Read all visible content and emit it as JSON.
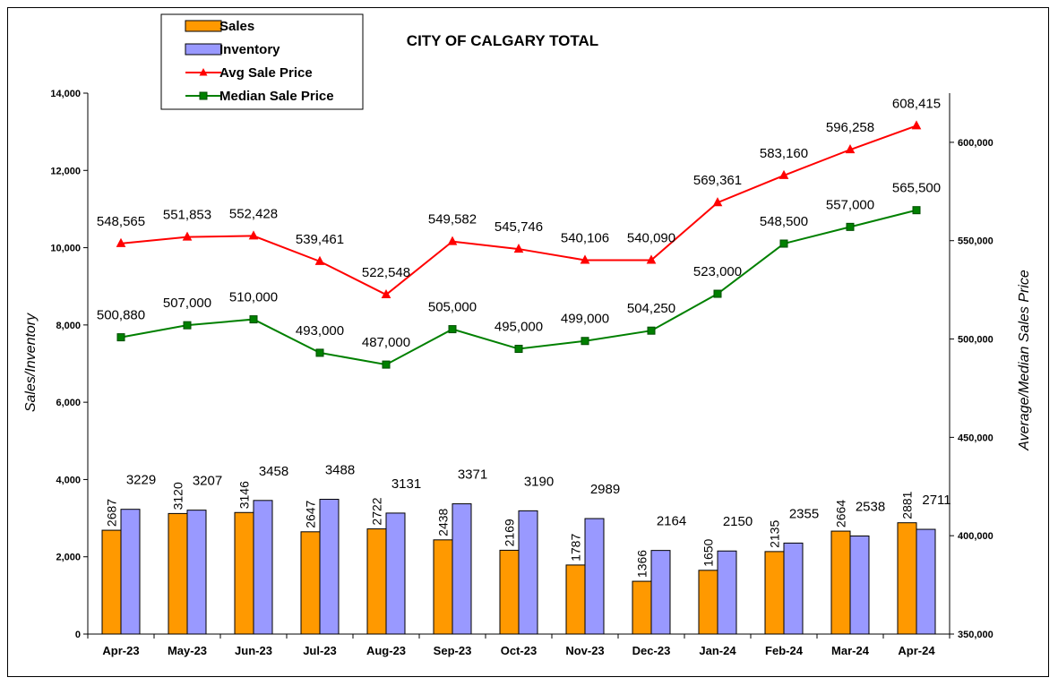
{
  "chart_data": {
    "type": "bar",
    "title": "CITY OF CALGARY TOTAL",
    "categories": [
      "Apr-23",
      "May-23",
      "Jun-23",
      "Jul-23",
      "Aug-23",
      "Sep-23",
      "Oct-23",
      "Nov-23",
      "Dec-23",
      "Jan-24",
      "Feb-24",
      "Mar-24",
      "Apr-24"
    ],
    "ylabel_left": "Sales/Inventory",
    "ylabel_right": "Average/Median Sales Price",
    "ylim_left": [
      0,
      14000
    ],
    "yticks_left": [
      "0",
      "2,000",
      "4,000",
      "6,000",
      "8,000",
      "10,000",
      "12,000",
      "14,000"
    ],
    "ylim_right": [
      350000,
      625000
    ],
    "yticks_right": [
      "350,000",
      "400,000",
      "450,000",
      "500,000",
      "550,000",
      "600,000"
    ],
    "legend_position": "top-left",
    "series": [
      {
        "name": "Sales",
        "type": "bar",
        "axis": "left",
        "color": "#FF9900",
        "values": [
          2687,
          3120,
          3146,
          2647,
          2722,
          2438,
          2169,
          1787,
          1366,
          1650,
          2135,
          2664,
          2881
        ],
        "labels": [
          "2687",
          "3120",
          "3146",
          "2647",
          "2722",
          "2438",
          "2169",
          "1787",
          "1366",
          "1650",
          "2135",
          "2664",
          "2881"
        ]
      },
      {
        "name": "Inventory",
        "type": "bar",
        "axis": "left",
        "color": "#9999FF",
        "values": [
          3229,
          3207,
          3458,
          3488,
          3131,
          3371,
          3190,
          2989,
          2164,
          2150,
          2355,
          2538,
          2711
        ],
        "labels": [
          "3229",
          "3207",
          "3458",
          "3488",
          "3131",
          "3371",
          "3190",
          "2989",
          "2164",
          "2150",
          "2355",
          "2538",
          "2711"
        ]
      },
      {
        "name": "Avg Sale Price",
        "type": "line",
        "axis": "right",
        "color": "#FF0000",
        "marker": "triangle",
        "values": [
          548565,
          551853,
          552428,
          539461,
          522548,
          549582,
          545746,
          540106,
          540090,
          569361,
          583160,
          596258,
          608415
        ],
        "labels": [
          "548,565",
          "551,853",
          "552,428",
          "539,461",
          "522,548",
          "549,582",
          "545,746",
          "540,106",
          "540,090",
          "569,361",
          "583,160",
          "596,258",
          "608,415"
        ]
      },
      {
        "name": "Median Sale Price",
        "type": "line",
        "axis": "right",
        "color": "#008000",
        "marker": "square",
        "values": [
          500880,
          507000,
          510000,
          493000,
          487000,
          505000,
          495000,
          499000,
          504250,
          523000,
          548500,
          557000,
          565500
        ],
        "labels": [
          "500,880",
          "507,000",
          "510,000",
          "493,000",
          "487,000",
          "505,000",
          "495,000",
          "499,000",
          "504,250",
          "523,000",
          "548,500",
          "557,000",
          "565,500"
        ]
      }
    ]
  }
}
